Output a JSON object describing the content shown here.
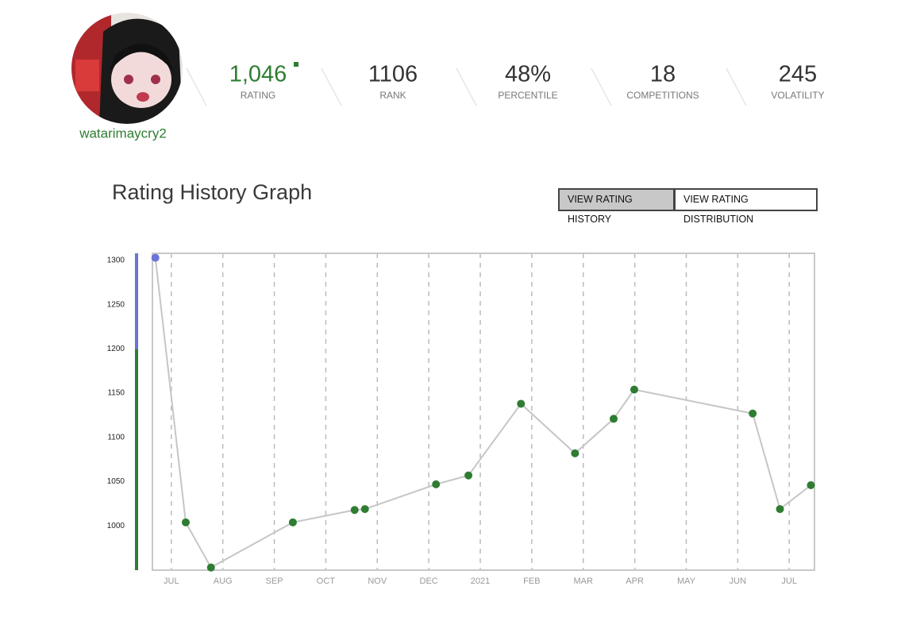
{
  "profile": {
    "username": "watarimaycry2",
    "stats": [
      {
        "value": "1,046",
        "label": "RATING"
      },
      {
        "value": "1106",
        "label": "RANK"
      },
      {
        "value": "48%",
        "label": "PERCENTILE"
      },
      {
        "value": "18",
        "label": "COMPETITIONS"
      },
      {
        "value": "245",
        "label": "VOLATILITY"
      }
    ]
  },
  "section_title": "Rating History Graph",
  "buttons": [
    "VIEW RATING HISTORY",
    "VIEW RATING DISTRIBUTION"
  ],
  "chart_data": {
    "type": "line",
    "x": [
      6.69,
      7.28,
      7.77,
      9.36,
      10.56,
      10.76,
      12.14,
      12.77,
      13.79,
      14.84,
      15.59,
      15.99,
      18.29,
      18.82,
      19.42
    ],
    "series": [
      {
        "color": "#c6c6c6",
        "values": [
          1303,
          1004,
          953,
          1004,
          1018,
          1019,
          1047,
          1057,
          1138,
          1082,
          1121,
          1154,
          1127,
          1019,
          1046
        ],
        "point_colors": [
          "#6a73d9",
          "#2e7d32",
          "#2e7d32",
          "#2e7d32",
          "#2e7d32",
          "#2e7d32",
          "#2e7d32",
          "#2e7d32",
          "#2e7d32",
          "#2e7d32",
          "#2e7d32",
          "#2e7d32",
          "#2e7d32",
          "#2e7d32",
          "#2e7d32"
        ]
      }
    ],
    "xlim": [
      6.34,
      19.49
    ],
    "xticks": [
      {
        "value": 7,
        "label": "JUL"
      },
      {
        "value": 8,
        "label": "AUG"
      },
      {
        "value": 9,
        "label": "SEP"
      },
      {
        "value": 10,
        "label": "OCT"
      },
      {
        "value": 11,
        "label": "NOV"
      },
      {
        "value": 12,
        "label": "DEC"
      },
      {
        "value": 13,
        "label": "2021"
      },
      {
        "value": 14,
        "label": "FEB"
      },
      {
        "value": 15,
        "label": "MAR"
      },
      {
        "value": 16,
        "label": "APR"
      },
      {
        "value": 17,
        "label": "MAY"
      },
      {
        "value": 18,
        "label": "JUN"
      },
      {
        "value": 19,
        "label": "JUL"
      }
    ],
    "ylim": [
      950,
      1308
    ],
    "yticks": [
      1000,
      1050,
      1100,
      1150,
      1200,
      1250,
      1300
    ],
    "bands": [
      {
        "min": 950,
        "max": 1200,
        "color": "#2e7d32"
      },
      {
        "min": 1200,
        "max": 1308,
        "color": "#6a73d9"
      }
    ],
    "grid": true
  }
}
